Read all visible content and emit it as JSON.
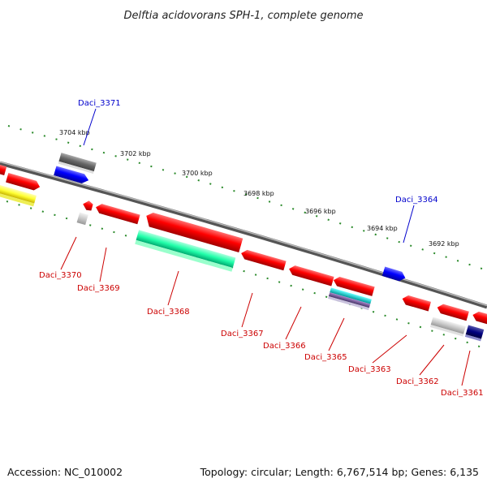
{
  "title": "Delftia acidovorans SPH-1, complete genome",
  "footer": {
    "accession": "Accession: NC_010002",
    "stats": "Topology: circular; Length: 6,767,514 bp; Genes: 6,135"
  },
  "ticks": [
    "3704 kbp",
    "3702 kbp",
    "3700 kbp",
    "3698 kbp",
    "3696 kbp",
    "3694 kbp",
    "3692 kbp"
  ],
  "genes": [
    {
      "label": "Daci_3371",
      "color": "#0000cc"
    },
    {
      "label": "Daci_3364",
      "color": "#0000cc"
    },
    {
      "label": "Daci_3370",
      "color": "#cc0000"
    },
    {
      "label": "Daci_3369",
      "color": "#cc0000"
    },
    {
      "label": "Daci_3368",
      "color": "#cc0000"
    },
    {
      "label": "Daci_3367",
      "color": "#cc0000"
    },
    {
      "label": "Daci_3366",
      "color": "#cc0000"
    },
    {
      "label": "Daci_3365",
      "color": "#cc0000"
    },
    {
      "label": "Daci_3363",
      "color": "#cc0000"
    },
    {
      "label": "Daci_3362",
      "color": "#cc0000"
    },
    {
      "label": "Daci_3361",
      "color": "#cc0000"
    }
  ]
}
